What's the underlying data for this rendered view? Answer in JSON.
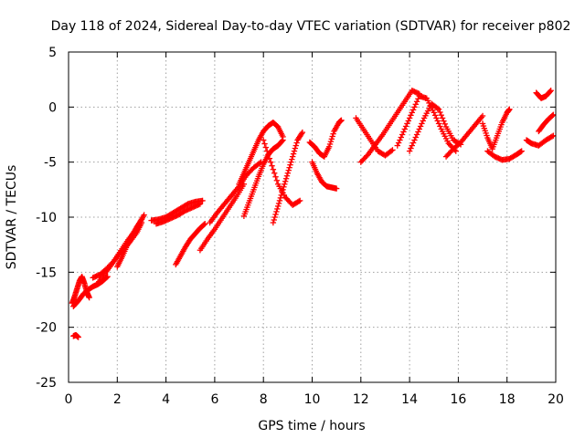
{
  "chart_data": {
    "type": "scatter",
    "title": "Day 118 of 2024, Sidereal Day-to-day VTEC variation (SDTVAR) for receiver p802",
    "xlabel": "GPS time / hours",
    "ylabel": "SDTVAR / TECUs",
    "xlim": [
      0,
      20
    ],
    "ylim": [
      -25,
      5
    ],
    "xticks": [
      0,
      2,
      4,
      6,
      8,
      10,
      12,
      14,
      16,
      18,
      20
    ],
    "yticks": [
      -25,
      -20,
      -15,
      -10,
      -5,
      0,
      5
    ],
    "grid": true,
    "marker": "+",
    "color": "#ff0000",
    "series": [
      {
        "name": "SDTVAR",
        "segments": [
          [
            [
              0.15,
              -17.8
            ],
            [
              0.25,
              -17.2
            ],
            [
              0.35,
              -16.5
            ],
            [
              0.45,
              -15.8
            ],
            [
              0.55,
              -15.4
            ],
            [
              0.65,
              -16.0
            ],
            [
              0.75,
              -16.8
            ],
            [
              0.85,
              -17.3
            ]
          ],
          [
            [
              0.2,
              -18.1
            ],
            [
              0.4,
              -17.6
            ],
            [
              0.6,
              -17.0
            ],
            [
              0.8,
              -16.6
            ],
            [
              1.0,
              -16.3
            ],
            [
              1.2,
              -16.1
            ],
            [
              1.4,
              -15.8
            ],
            [
              1.6,
              -15.4
            ]
          ],
          [
            [
              1.0,
              -15.5
            ],
            [
              1.3,
              -15.2
            ],
            [
              1.6,
              -14.6
            ],
            [
              1.9,
              -13.9
            ],
            [
              2.2,
              -13.0
            ],
            [
              2.5,
              -12.3
            ],
            [
              2.8,
              -11.4
            ],
            [
              3.0,
              -10.5
            ]
          ],
          [
            [
              1.2,
              -16.0
            ],
            [
              1.5,
              -15.1
            ],
            [
              1.8,
              -14.2
            ],
            [
              2.1,
              -13.2
            ],
            [
              2.4,
              -12.2
            ],
            [
              2.7,
              -11.3
            ],
            [
              2.9,
              -10.6
            ],
            [
              3.1,
              -9.8
            ]
          ],
          [
            [
              2.0,
              -14.5
            ],
            [
              2.2,
              -13.6
            ],
            [
              2.4,
              -12.6
            ],
            [
              2.6,
              -11.7
            ],
            [
              2.8,
              -10.9
            ],
            [
              3.0,
              -10.2
            ]
          ],
          [
            [
              0.2,
              -20.8
            ],
            [
              0.3,
              -20.7
            ],
            [
              0.4,
              -20.9
            ]
          ],
          [
            [
              3.4,
              -10.3
            ],
            [
              3.7,
              -10.2
            ],
            [
              4.0,
              -10.0
            ],
            [
              4.3,
              -9.6
            ],
            [
              4.6,
              -9.2
            ],
            [
              4.9,
              -8.8
            ],
            [
              5.2,
              -8.6
            ],
            [
              5.5,
              -8.5
            ]
          ],
          [
            [
              3.6,
              -10.6
            ],
            [
              3.9,
              -10.4
            ],
            [
              4.2,
              -10.1
            ],
            [
              4.5,
              -9.8
            ],
            [
              4.8,
              -9.4
            ],
            [
              5.1,
              -9.1
            ],
            [
              5.4,
              -8.8
            ]
          ],
          [
            [
              4.4,
              -14.3
            ],
            [
              4.6,
              -13.5
            ],
            [
              4.8,
              -12.7
            ],
            [
              5.0,
              -12.0
            ],
            [
              5.2,
              -11.5
            ],
            [
              5.4,
              -11.0
            ],
            [
              5.6,
              -10.6
            ]
          ],
          [
            [
              5.4,
              -13.0
            ],
            [
              5.7,
              -12.0
            ],
            [
              6.0,
              -11.1
            ],
            [
              6.3,
              -10.1
            ],
            [
              6.6,
              -9.1
            ],
            [
              6.9,
              -8.1
            ],
            [
              7.2,
              -7.0
            ]
          ],
          [
            [
              5.8,
              -10.5
            ],
            [
              6.1,
              -9.6
            ],
            [
              6.4,
              -8.8
            ],
            [
              6.7,
              -8.0
            ],
            [
              7.0,
              -7.2
            ],
            [
              7.3,
              -6.2
            ],
            [
              7.6,
              -5.5
            ],
            [
              7.9,
              -5.0
            ]
          ],
          [
            [
              7.0,
              -7.0
            ],
            [
              7.2,
              -6.0
            ],
            [
              7.4,
              -5.0
            ],
            [
              7.6,
              -4.0
            ],
            [
              7.8,
              -3.0
            ],
            [
              8.0,
              -2.2
            ],
            [
              8.2,
              -1.7
            ],
            [
              8.4,
              -1.4
            ],
            [
              8.6,
              -1.8
            ],
            [
              8.8,
              -2.7
            ]
          ],
          [
            [
              7.2,
              -9.9
            ],
            [
              7.4,
              -8.7
            ],
            [
              7.6,
              -7.5
            ],
            [
              7.8,
              -6.3
            ],
            [
              8.0,
              -5.2
            ],
            [
              8.2,
              -4.3
            ],
            [
              8.4,
              -3.8
            ],
            [
              8.6,
              -3.5
            ],
            [
              8.8,
              -3.0
            ]
          ],
          [
            [
              8.4,
              -10.5
            ],
            [
              8.6,
              -9.0
            ],
            [
              8.8,
              -7.5
            ],
            [
              9.0,
              -6.0
            ],
            [
              9.2,
              -4.5
            ],
            [
              9.4,
              -3.0
            ],
            [
              9.6,
              -2.3
            ]
          ],
          [
            [
              8.0,
              -3.0
            ],
            [
              8.3,
              -5.0
            ],
            [
              8.6,
              -7.0
            ],
            [
              8.9,
              -8.2
            ],
            [
              9.2,
              -8.9
            ],
            [
              9.5,
              -8.5
            ]
          ],
          [
            [
              10.0,
              -5.0
            ],
            [
              10.2,
              -6.0
            ],
            [
              10.4,
              -6.8
            ],
            [
              10.6,
              -7.2
            ],
            [
              10.8,
              -7.3
            ],
            [
              11.0,
              -7.4
            ]
          ],
          [
            [
              9.9,
              -3.2
            ],
            [
              10.1,
              -3.6
            ],
            [
              10.3,
              -4.2
            ],
            [
              10.5,
              -4.5
            ],
            [
              10.7,
              -3.6
            ],
            [
              10.9,
              -2.2
            ],
            [
              11.1,
              -1.4
            ],
            [
              11.2,
              -1.2
            ]
          ],
          [
            [
              12.0,
              -5.0
            ],
            [
              12.3,
              -4.3
            ],
            [
              12.6,
              -3.4
            ],
            [
              12.9,
              -2.5
            ],
            [
              13.2,
              -1.5
            ],
            [
              13.5,
              -0.5
            ],
            [
              13.8,
              0.5
            ],
            [
              14.1,
              1.5
            ],
            [
              14.4,
              1.2
            ]
          ],
          [
            [
              11.8,
              -1.0
            ],
            [
              12.1,
              -2.0
            ],
            [
              12.4,
              -3.0
            ],
            [
              12.7,
              -4.0
            ],
            [
              13.0,
              -4.4
            ],
            [
              13.3,
              -3.9
            ]
          ],
          [
            [
              13.5,
              -3.5
            ],
            [
              13.8,
              -2.0
            ],
            [
              14.1,
              -0.5
            ],
            [
              14.4,
              1.0
            ],
            [
              14.7,
              0.8
            ],
            [
              15.0,
              -0.5
            ],
            [
              15.3,
              -2.0
            ],
            [
              15.6,
              -3.3
            ],
            [
              15.9,
              -4.0
            ]
          ],
          [
            [
              14.0,
              -4.0
            ],
            [
              14.3,
              -2.5
            ],
            [
              14.6,
              -1.0
            ],
            [
              14.9,
              0.3
            ],
            [
              15.2,
              -0.2
            ],
            [
              15.5,
              -1.8
            ],
            [
              15.8,
              -3.0
            ],
            [
              16.1,
              -3.4
            ]
          ],
          [
            [
              15.5,
              -4.5
            ],
            [
              15.8,
              -3.8
            ],
            [
              16.1,
              -3.2
            ],
            [
              16.4,
              -2.4
            ],
            [
              16.7,
              -1.6
            ],
            [
              17.0,
              -0.8
            ]
          ],
          [
            [
              17.2,
              -4.0
            ],
            [
              17.5,
              -4.5
            ],
            [
              17.8,
              -4.8
            ],
            [
              18.1,
              -4.7
            ],
            [
              18.4,
              -4.3
            ],
            [
              18.6,
              -4.0
            ]
          ],
          [
            [
              17.0,
              -1.5
            ],
            [
              17.2,
              -2.8
            ],
            [
              17.4,
              -3.8
            ],
            [
              17.6,
              -2.6
            ],
            [
              17.8,
              -1.4
            ],
            [
              18.0,
              -0.5
            ],
            [
              18.1,
              -0.2
            ]
          ],
          [
            [
              18.8,
              -3.0
            ],
            [
              19.0,
              -3.3
            ],
            [
              19.3,
              -3.5
            ],
            [
              19.6,
              -3.0
            ],
            [
              19.9,
              -2.6
            ]
          ],
          [
            [
              19.3,
              -2.2
            ],
            [
              19.5,
              -1.6
            ],
            [
              19.7,
              -1.1
            ],
            [
              19.9,
              -0.7
            ]
          ],
          [
            [
              19.2,
              1.3
            ],
            [
              19.4,
              0.8
            ],
            [
              19.6,
              1.0
            ],
            [
              19.8,
              1.5
            ]
          ]
        ]
      }
    ]
  }
}
